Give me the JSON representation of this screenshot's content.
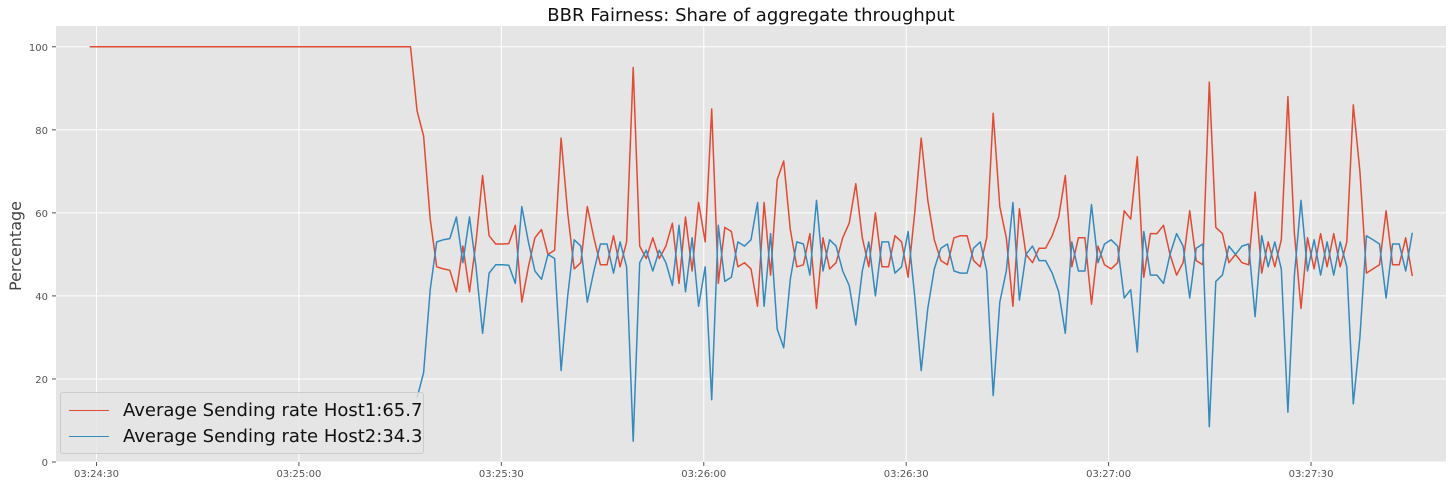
{
  "chart_data": {
    "type": "line",
    "title": "BBR Fairness: Share of aggregate throughput",
    "xlabel": "",
    "ylabel": "Percentage",
    "x_start": "03:24:29",
    "x_end": "03:27:45",
    "xlim": [
      "03:24:24",
      "03:27:50"
    ],
    "ylim": [
      0,
      105
    ],
    "xticks": [
      "03:24:30",
      "03:25:00",
      "03:25:30",
      "03:26:00",
      "03:26:30",
      "03:27:00",
      "03:27:30"
    ],
    "yticks": [
      0,
      20,
      40,
      60,
      80,
      100
    ],
    "grid": true,
    "legend_position": "lower-left",
    "series": [
      {
        "name": "Average Sending rate Host1:65.7",
        "color": "#E24A33",
        "values": [
          100,
          100,
          100,
          100,
          100,
          100,
          100,
          100,
          100,
          100,
          100,
          100,
          100,
          100,
          100,
          100,
          100,
          100,
          100,
          100,
          100,
          100,
          100,
          100,
          100,
          100,
          100,
          100,
          100,
          100,
          100,
          100,
          100,
          100,
          100,
          100,
          100,
          100,
          100,
          100,
          100,
          100,
          100,
          100,
          100,
          100,
          100,
          100,
          100,
          100,
          84.5,
          78.5,
          58.5,
          47,
          46.5,
          46.2,
          41,
          52,
          41,
          53,
          69,
          54.5,
          52.5,
          52.5,
          52.6,
          57,
          38.5,
          47,
          54,
          56,
          50,
          51,
          78,
          60,
          46.5,
          48,
          61.5,
          54,
          47.5,
          47.5,
          54.5,
          47,
          53,
          95,
          52,
          49,
          54,
          49,
          52,
          57.5,
          43,
          59,
          46,
          62.5,
          53,
          85,
          43,
          56.5,
          55.5,
          47,
          48,
          46.5,
          37.5,
          62.5,
          45,
          68,
          72.5,
          56,
          47,
          47.5,
          55,
          37,
          54,
          46.5,
          48,
          54,
          57.5,
          67,
          54,
          47,
          60,
          47,
          47,
          54.5,
          53,
          44.5,
          60,
          78,
          63,
          53.5,
          48.5,
          47.5,
          54,
          54.5,
          54.5,
          48.5,
          47,
          54,
          84,
          61.5,
          54,
          37.5,
          61,
          50,
          48,
          51.5,
          51.5,
          54.5,
          59,
          69,
          47,
          54,
          54,
          38,
          52,
          47.5,
          46.5,
          48,
          60.5,
          58.5,
          73.5,
          44.5,
          55,
          55,
          57,
          50,
          45,
          48,
          60.5,
          48.5,
          47.5,
          91.5,
          56.5,
          55,
          48,
          50,
          48,
          47.5,
          65,
          45.5,
          53,
          47,
          53.5,
          88,
          55,
          37,
          54,
          46.5,
          55,
          47,
          55,
          47,
          53,
          86,
          70,
          45.5,
          46.5,
          47.5,
          60.5,
          47.5,
          47.5,
          54,
          44.8
        ]
      },
      {
        "name": "Average Sending rate Host2:34.3",
        "color": "#348ABD",
        "values": [
          null,
          null,
          null,
          null,
          null,
          null,
          null,
          null,
          null,
          null,
          null,
          null,
          null,
          null,
          null,
          null,
          null,
          null,
          null,
          null,
          null,
          null,
          null,
          null,
          null,
          null,
          null,
          null,
          null,
          null,
          null,
          null,
          null,
          null,
          null,
          null,
          null,
          null,
          null,
          null,
          null,
          null,
          null,
          null,
          null,
          null,
          null,
          null,
          null,
          null,
          15.5,
          21.5,
          41.5,
          53,
          53.5,
          53.8,
          59,
          48,
          59,
          47,
          31,
          45.5,
          47.5,
          47.5,
          47.4,
          43,
          61.5,
          53,
          46,
          44,
          50,
          49,
          22,
          40,
          53.5,
          52,
          38.5,
          46,
          52.5,
          52.5,
          45.5,
          53,
          47,
          5,
          48,
          51,
          46,
          51,
          48,
          42.5,
          57,
          41,
          54,
          37.5,
          47,
          15,
          57,
          43.5,
          44.5,
          53,
          52,
          53.5,
          62.5,
          37.5,
          55,
          32,
          27.5,
          44,
          53,
          52.5,
          45,
          63,
          46,
          53.5,
          52,
          46,
          42.5,
          33,
          46,
          53,
          40,
          53,
          53,
          45.5,
          47,
          55.5,
          40,
          22,
          37,
          46.5,
          51.5,
          52.5,
          46,
          45.5,
          45.5,
          51.5,
          53,
          46,
          16,
          38.5,
          46,
          62.5,
          39,
          50,
          52,
          48.5,
          48.5,
          45.5,
          41,
          31,
          53,
          46,
          46,
          62,
          48,
          52.5,
          53.5,
          52,
          39.5,
          41.5,
          26.5,
          55.5,
          45,
          45,
          43,
          50,
          55,
          52,
          39.5,
          51.5,
          52.5,
          8.5,
          43.5,
          45,
          52,
          50,
          52,
          52.5,
          35,
          54.5,
          47,
          53,
          46.5,
          12,
          45,
          63,
          46,
          53.5,
          45,
          53,
          45,
          53,
          47,
          14,
          30,
          54.5,
          53.5,
          52.5,
          39.5,
          52.5,
          52.5,
          46,
          55.2
        ]
      }
    ]
  }
}
